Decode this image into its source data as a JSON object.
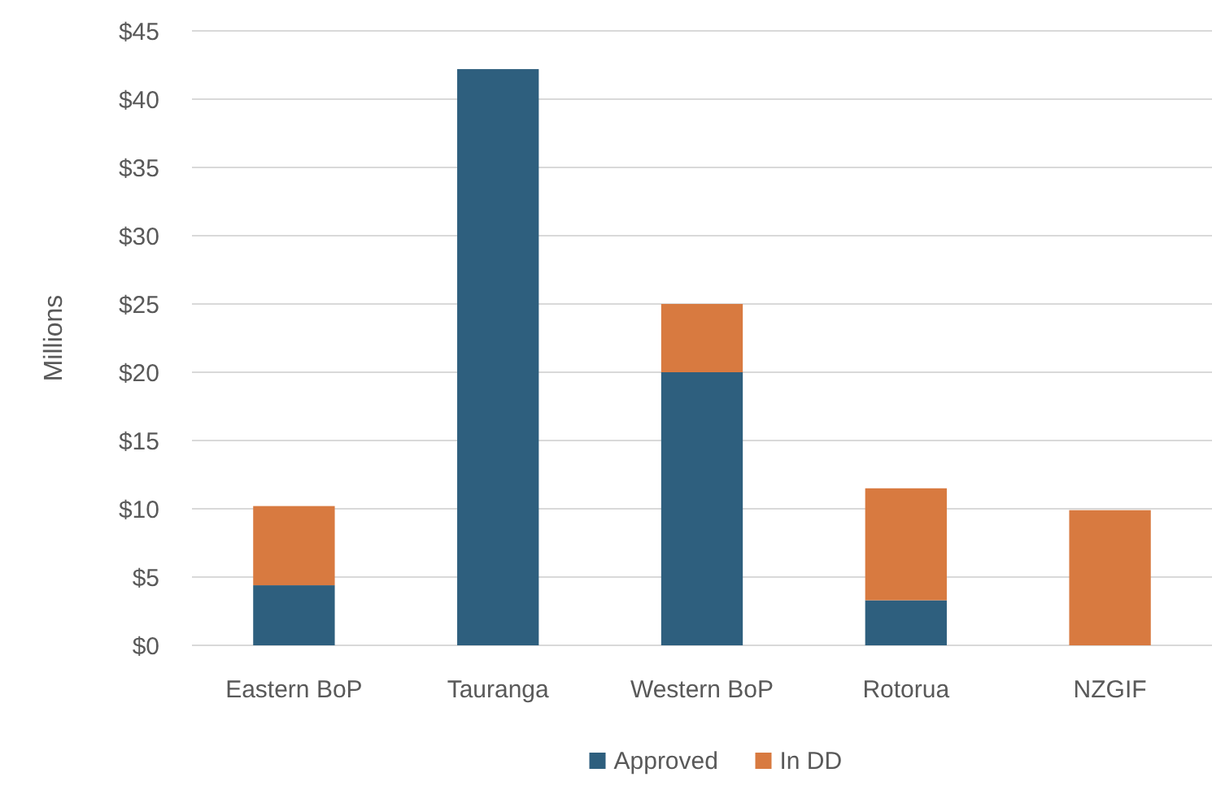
{
  "chart_data": {
    "type": "bar",
    "stacked": true,
    "ylabel": "Millions",
    "categories": [
      "Eastern BoP",
      "Tauranga",
      "Western BoP",
      "Rotorua",
      "NZGIF"
    ],
    "series": [
      {
        "name": "Approved",
        "color": "#2e5f7e",
        "values": [
          4.4,
          42.2,
          20,
          3.3,
          0
        ]
      },
      {
        "name": "In DD",
        "color": "#d87a40",
        "values": [
          5.8,
          0,
          5,
          8.2,
          9.9
        ]
      }
    ],
    "ylim": [
      0,
      45
    ],
    "yticks": [
      {
        "value": 0,
        "label": "$0"
      },
      {
        "value": 5,
        "label": "$5"
      },
      {
        "value": 10,
        "label": "$10"
      },
      {
        "value": 15,
        "label": "$15"
      },
      {
        "value": 20,
        "label": "$20"
      },
      {
        "value": 25,
        "label": "$25"
      },
      {
        "value": 30,
        "label": "$30"
      },
      {
        "value": 35,
        "label": "$35"
      },
      {
        "value": 40,
        "label": "$40"
      },
      {
        "value": 45,
        "label": "$45"
      }
    ],
    "grid": "y",
    "legend": "bottom"
  }
}
